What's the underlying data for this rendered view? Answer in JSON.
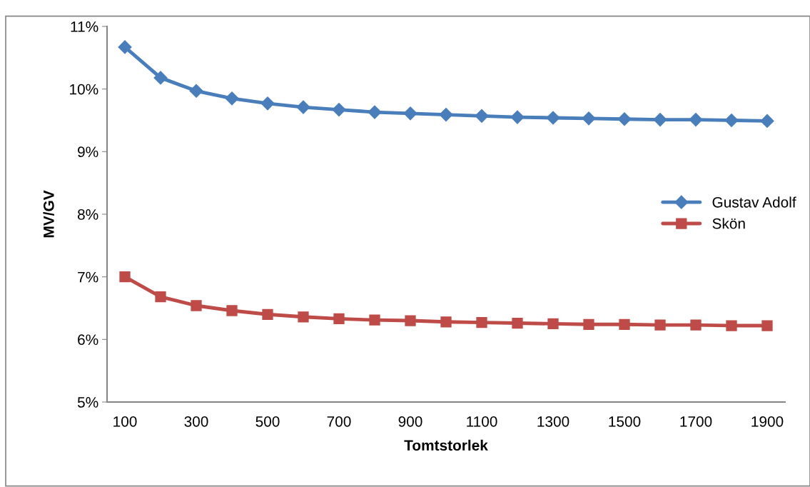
{
  "chart_data": {
    "type": "line",
    "xlabel": "Tomtstorlek",
    "ylabel": "MV/GV",
    "categories": [
      "100",
      null,
      "300",
      null,
      "500",
      null,
      "700",
      null,
      "900",
      null,
      "1100",
      null,
      "1300",
      null,
      "1500",
      null,
      "1700",
      null,
      "1900"
    ],
    "series": [
      {
        "name": "Gustav Adolf",
        "color": "#4a7ebb",
        "marker": "diamond",
        "values": [
          10.67,
          10.18,
          9.97,
          9.85,
          9.77,
          9.71,
          9.67,
          9.63,
          9.61,
          9.59,
          9.57,
          9.55,
          9.54,
          9.53,
          9.52,
          9.51,
          9.51,
          9.5,
          9.49
        ]
      },
      {
        "name": "Skön",
        "color": "#be4b48",
        "marker": "square",
        "values": [
          7.0,
          6.68,
          6.54,
          6.46,
          6.4,
          6.36,
          6.33,
          6.31,
          6.3,
          6.28,
          6.27,
          6.26,
          6.25,
          6.24,
          6.24,
          6.23,
          6.23,
          6.22,
          6.22
        ]
      }
    ],
    "ylim": [
      5,
      11
    ],
    "yticks": [
      {
        "value": 5,
        "label": "5%"
      },
      {
        "value": 6,
        "label": "6%"
      },
      {
        "value": 7,
        "label": "7%"
      },
      {
        "value": 8,
        "label": "8%"
      },
      {
        "value": 9,
        "label": "9%"
      },
      {
        "value": 10,
        "label": "10%"
      },
      {
        "value": 11,
        "label": "11%"
      }
    ],
    "grid": false,
    "legend": "right",
    "line_style": "solid"
  }
}
